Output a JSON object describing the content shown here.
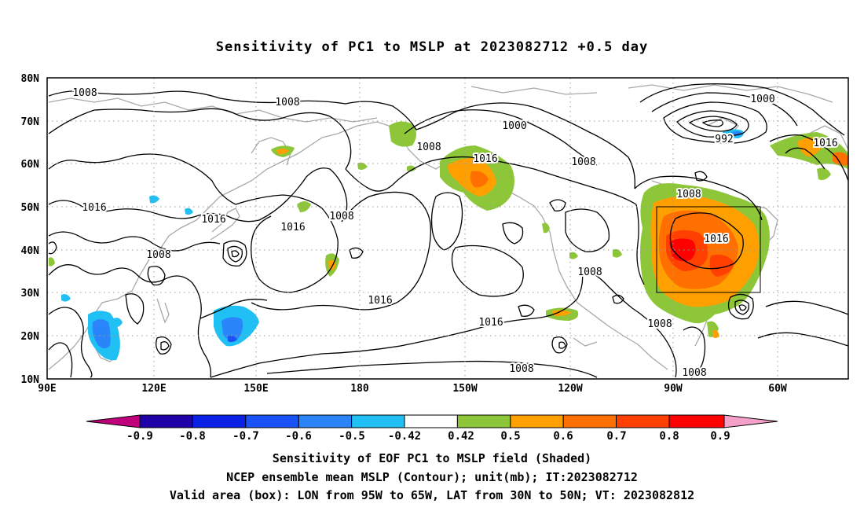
{
  "title": "Sensitivity of PC1 to MSLP at 2023082712 +0.5 day",
  "lat_labels": [
    "80N",
    "70N",
    "60N",
    "50N",
    "40N",
    "30N",
    "20N",
    "10N"
  ],
  "lon_labels": [
    "90E",
    "120E",
    "150E",
    "180",
    "150W",
    "120W",
    "90W",
    "60W"
  ],
  "contour_labels": [
    "1008",
    "1008",
    "1000",
    "1008",
    "1008",
    "1000",
    "992",
    "1016",
    "1016",
    "1016",
    "1016",
    "1008",
    "1008",
    "1016",
    "1016",
    "1008",
    "1016",
    "1008",
    "1016",
    "1008",
    "1008",
    "1008"
  ],
  "colorbar": {
    "labels": [
      "-0.9",
      "-0.8",
      "-0.7",
      "-0.6",
      "-0.5",
      "-0.42",
      "0.42",
      "0.5",
      "0.6",
      "0.7",
      "0.8",
      "0.9"
    ],
    "colors": [
      "#1e00a8",
      "#0a22e6",
      "#1a52f5",
      "#2a84fa",
      "#20c0f4",
      "#ffffff",
      "#8ec63a",
      "#ffa000",
      "#ff7000",
      "#ff4000",
      "#ff0000"
    ],
    "low_arrow": "#c0007a",
    "high_arrow": "#f4a0c8"
  },
  "footer": {
    "line1": "Sensitivity of EOF PC1 to MSLP field (Shaded)",
    "line2": "NCEP ensemble mean MSLP (Contour); unit(mb); IT:2023082712",
    "line3": "Valid area (box): LON from 95W to 65W, LAT from 30N to 50N; VT: 2023082812"
  }
}
